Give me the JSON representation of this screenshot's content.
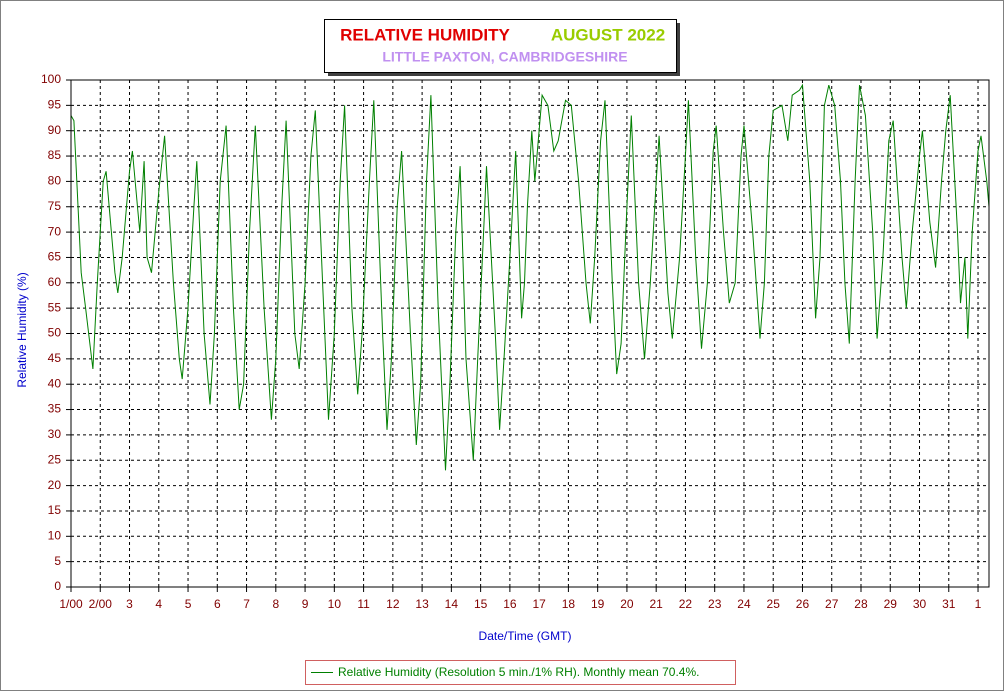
{
  "chart_data": {
    "type": "line",
    "title": "RELATIVE HUMIDITY",
    "period": "AUGUST 2022",
    "subtitle": "LITTLE PAXTON, CAMBRIDGESHIRE",
    "xlabel": "Date/Time (GMT)",
    "ylabel": "Relative Humidity (%)",
    "x": [
      0.0,
      0.1,
      0.35,
      0.5,
      0.75,
      0.9,
      1.1,
      1.2,
      1.5,
      1.6,
      1.75,
      2.0,
      2.1,
      2.35,
      2.5,
      2.6,
      2.75,
      3.0,
      3.2,
      3.5,
      3.7,
      3.8,
      4.0,
      4.2,
      4.3,
      4.55,
      4.75,
      4.9,
      5.1,
      5.3,
      5.55,
      5.75,
      5.9,
      6.1,
      6.3,
      6.6,
      6.85,
      7.0,
      7.2,
      7.35,
      7.65,
      7.8,
      8.0,
      8.2,
      8.35,
      8.6,
      8.8,
      9.0,
      9.2,
      9.35,
      9.6,
      9.8,
      9.95,
      10.2,
      10.35,
      10.65,
      10.8,
      10.95,
      11.15,
      11.3,
      11.6,
      11.8,
      11.95,
      12.15,
      12.3,
      12.55,
      12.8,
      12.95,
      13.15,
      13.3,
      13.5,
      13.75,
      13.9,
      14.1,
      14.2,
      14.5,
      14.65,
      14.8,
      15.0,
      15.2,
      15.4,
      15.5,
      15.6,
      15.75,
      15.85,
      16.0,
      16.1,
      16.3,
      16.5,
      16.65,
      16.9,
      17.1,
      17.35,
      17.6,
      17.75,
      17.9,
      18.1,
      18.25,
      18.5,
      18.65,
      18.8,
      19.0,
      19.15,
      19.4,
      19.6,
      19.8,
      20.0,
      20.1,
      20.4,
      20.55,
      20.8,
      21.0,
      21.1,
      21.35,
      21.55,
      21.75,
      21.95,
      22.05,
      22.3,
      22.5,
      22.7,
      22.9,
      23.0,
      23.3,
      23.55,
      23.7,
      23.85,
      24.0,
      24.3,
      24.5,
      24.65,
      24.9,
      25.0,
      25.25,
      25.45,
      25.6,
      25.75,
      25.9,
      26.1,
      26.3,
      26.45,
      26.6,
      26.8,
      26.95,
      27.15,
      27.4,
      27.55,
      27.75,
      27.95,
      28.1,
      28.4,
      28.55,
      28.75,
      29.0,
      29.1,
      29.35,
      29.55,
      29.75,
      29.9,
      30.05,
      30.3,
      30.4,
      30.55,
      30.65,
      30.8,
      31.0,
      31.1,
      31.3,
      31.375
    ],
    "series": [
      {
        "name": "Relative Humidity (Resolution 5 min./1% RH). Monthly mean 70.4%.",
        "color": "#008000",
        "values": [
          93,
          92,
          62,
          55,
          43,
          60,
          80,
          82,
          62,
          58,
          65,
          82,
          86,
          70,
          84,
          65,
          62,
          78,
          89,
          60,
          45,
          41,
          55,
          75,
          84,
          50,
          36,
          50,
          80,
          91,
          55,
          35,
          40,
          70,
          91,
          55,
          33,
          45,
          75,
          92,
          50,
          43,
          60,
          85,
          94,
          60,
          33,
          50,
          80,
          95,
          55,
          38,
          50,
          80,
          96,
          50,
          31,
          45,
          75,
          86,
          50,
          28,
          40,
          80,
          97,
          55,
          23,
          40,
          70,
          83,
          45,
          25,
          45,
          70,
          83,
          50,
          31,
          45,
          65,
          86,
          53,
          60,
          75,
          90,
          80,
          90,
          97,
          95,
          86,
          88,
          96,
          95,
          80,
          60,
          52,
          65,
          88,
          96,
          60,
          42,
          48,
          75,
          93,
          60,
          45,
          60,
          80,
          89,
          58,
          49,
          65,
          85,
          96,
          65,
          47,
          60,
          86,
          91,
          70,
          56,
          60,
          85,
          91,
          70,
          49,
          60,
          85,
          94,
          95,
          88,
          97,
          98,
          99,
          80,
          53,
          65,
          95,
          99,
          95,
          80,
          60,
          48,
          80,
          99,
          93,
          70,
          49,
          65,
          88,
          92,
          65,
          55,
          70,
          85,
          90,
          72,
          63,
          80,
          90,
          97,
          70,
          56,
          65,
          49,
          70,
          86,
          89,
          80,
          75
        ]
      }
    ],
    "xlim": [
      0,
      31.375
    ],
    "ylim": [
      0,
      100
    ],
    "xticks": [
      {
        "value": 0,
        "label": "1/00"
      },
      {
        "value": 1,
        "label": "2/00"
      },
      {
        "value": 2,
        "label": "3"
      },
      {
        "value": 3,
        "label": "4"
      },
      {
        "value": 4,
        "label": "5"
      },
      {
        "value": 5,
        "label": "6"
      },
      {
        "value": 6,
        "label": "7"
      },
      {
        "value": 7,
        "label": "8"
      },
      {
        "value": 8,
        "label": "9"
      },
      {
        "value": 9,
        "label": "10"
      },
      {
        "value": 10,
        "label": "11"
      },
      {
        "value": 11,
        "label": "12"
      },
      {
        "value": 12,
        "label": "13"
      },
      {
        "value": 13,
        "label": "14"
      },
      {
        "value": 14,
        "label": "15"
      },
      {
        "value": 15,
        "label": "16"
      },
      {
        "value": 16,
        "label": "17"
      },
      {
        "value": 17,
        "label": "18"
      },
      {
        "value": 18,
        "label": "19"
      },
      {
        "value": 19,
        "label": "20"
      },
      {
        "value": 20,
        "label": "21"
      },
      {
        "value": 21,
        "label": "22"
      },
      {
        "value": 22,
        "label": "23"
      },
      {
        "value": 23,
        "label": "24"
      },
      {
        "value": 24,
        "label": "25"
      },
      {
        "value": 25,
        "label": "26"
      },
      {
        "value": 26,
        "label": "27"
      },
      {
        "value": 27,
        "label": "28"
      },
      {
        "value": 28,
        "label": "29"
      },
      {
        "value": 29,
        "label": "30"
      },
      {
        "value": 30,
        "label": "31"
      },
      {
        "value": 31,
        "label": "1"
      }
    ],
    "yticks": [
      0,
      5,
      10,
      15,
      20,
      25,
      30,
      35,
      40,
      45,
      50,
      55,
      60,
      65,
      70,
      75,
      80,
      85,
      90,
      95,
      100
    ],
    "grid": true
  }
}
